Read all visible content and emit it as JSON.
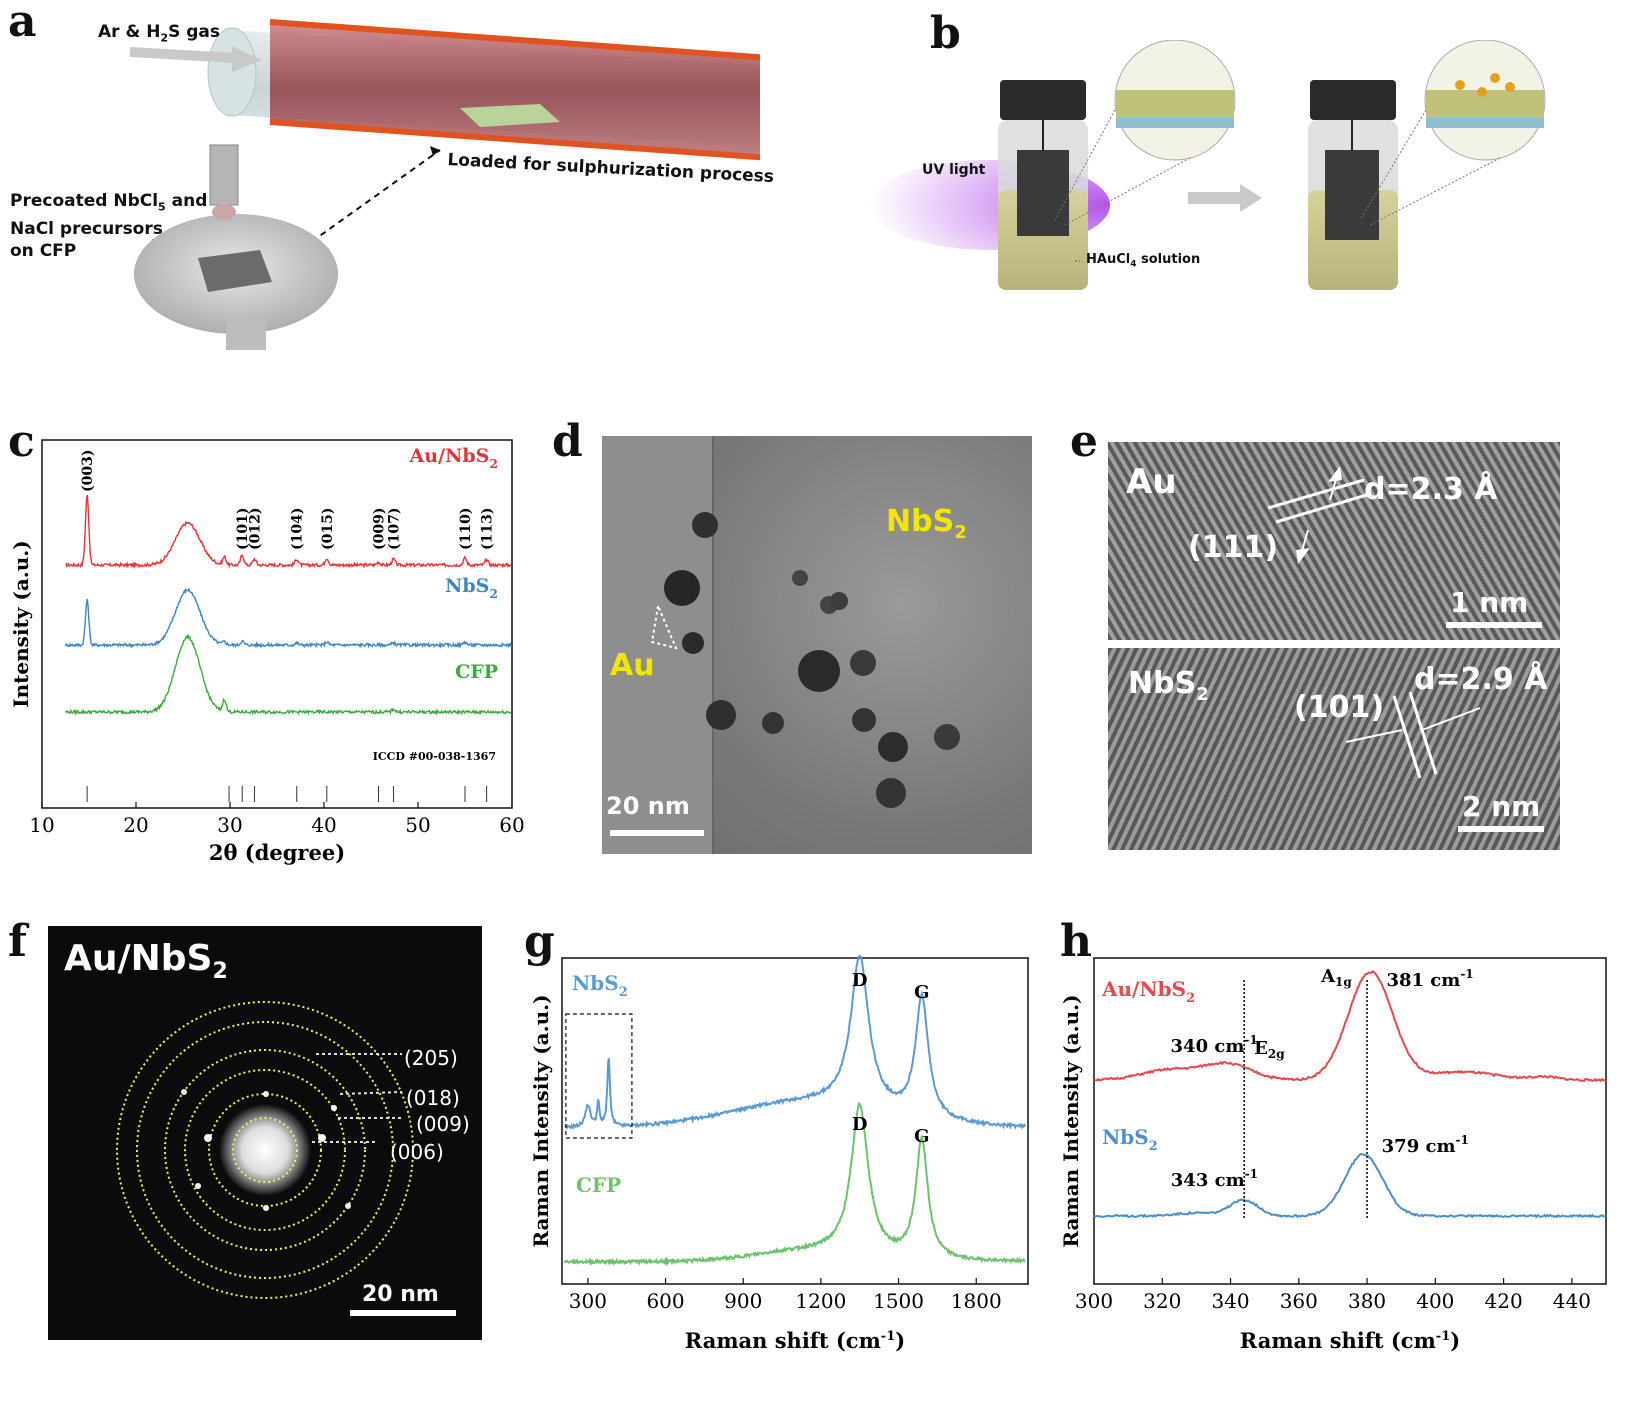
{
  "panels": {
    "a": {
      "letter": "a",
      "gas_label": "Ar & H",
      "gas_sub": "2",
      "gas_suffix": "S gas",
      "loaded_label": "Loaded for sulphurization process",
      "precoated_line1": "Precoated NbCl",
      "precoated_sub": "5",
      "precoated_line1_suffix": " and",
      "precoated_line2": "NaCl precursors",
      "precoated_line3": "on CFP",
      "colors": {
        "furnace_coil": "#e0531f",
        "tube": "#c9d6d9",
        "heater": "#a5484f"
      }
    },
    "b": {
      "letter": "b",
      "uv_label": "UV light",
      "solution_label": "HAuCl",
      "solution_sub": "4",
      "solution_suffix": " solution",
      "colors": {
        "uv": "#b04ae8",
        "cap": "#2a2a2a",
        "liquid": "#c9c48a"
      }
    },
    "c": {
      "letter": "c",
      "ref_label": "ICCD #00-038-1367"
    },
    "d": {
      "letter": "d",
      "material_label": "NbS",
      "material_sub": "2",
      "au_label": "Au",
      "scale_label": "20 nm"
    },
    "e": {
      "letter": "e",
      "top": {
        "material": "Au",
        "plane": "(111)",
        "spacing": "d=2.3 Å",
        "scale": "1 nm"
      },
      "bottom": {
        "material": "NbS",
        "material_sub": "2",
        "plane": "(101)",
        "spacing": "d=2.9 Å",
        "scale": "2 nm"
      }
    },
    "f": {
      "letter": "f",
      "title": "Au/NbS",
      "title_sub": "2",
      "rings": [
        "(205)",
        "(018)",
        "(009)",
        "(006)"
      ],
      "scale_label": "20 nm"
    },
    "g": {
      "letter": "g"
    },
    "h": {
      "letter": "h"
    }
  },
  "chart_data": [
    {
      "id": "c",
      "type": "line",
      "xlabel": "2θ (degree)",
      "ylabel": "Intensity (a.u.)",
      "xlim": [
        10,
        60
      ],
      "xticks": [
        10,
        20,
        30,
        40,
        50,
        60
      ],
      "series": [
        {
          "name": "Au/NbS2",
          "label": "Au/NbS",
          "label_sub": "2",
          "color": "#e8323a",
          "peaks": [
            [
              14.8,
              70
            ],
            [
              25.5,
              42
            ],
            [
              29.4,
              8
            ],
            [
              31.3,
              10
            ],
            [
              32.6,
              6
            ],
            [
              37.1,
              6
            ],
            [
              40.3,
              7
            ],
            [
              45.8,
              3
            ],
            [
              47.4,
              6
            ],
            [
              55.0,
              7
            ],
            [
              57.3,
              5
            ]
          ]
        },
        {
          "name": "NbS2",
          "label": "NbS",
          "label_sub": "2",
          "color": "#3b86c8",
          "peaks": [
            [
              14.8,
              45
            ],
            [
              25.5,
              55
            ],
            [
              29.4,
              3
            ],
            [
              31.3,
              4
            ],
            [
              37.1,
              2
            ],
            [
              40.3,
              3
            ],
            [
              47.4,
              2
            ],
            [
              55.0,
              3
            ]
          ]
        },
        {
          "name": "CFP",
          "label": "CFP",
          "color": "#3cab3c",
          "peaks": [
            [
              25.5,
              75
            ],
            [
              29.4,
              12
            ],
            [
              47.4,
              3
            ]
          ]
        }
      ],
      "reflections": [
        {
          "label": "(003)",
          "x": 14.8
        },
        {
          "label": "(101)",
          "x": 31.3
        },
        {
          "label": "(012)",
          "x": 32.6
        },
        {
          "label": "(104)",
          "x": 37.1
        },
        {
          "label": "(015)",
          "x": 40.3
        },
        {
          "label": "(009)",
          "x": 45.8
        },
        {
          "label": "(107)",
          "x": 47.4
        },
        {
          "label": "(110)",
          "x": 55.0
        },
        {
          "label": "(113)",
          "x": 57.3
        }
      ],
      "reference_lines": [
        14.8,
        29.9,
        31.3,
        32.6,
        37.1,
        40.3,
        45.8,
        47.4,
        55.0,
        57.3
      ]
    },
    {
      "id": "g",
      "type": "line",
      "xlabel": "Raman shift (cm",
      "xlabel_sup": "-1",
      "xlabel_end": ")",
      "ylabel": "Raman Intensity (a.u.)",
      "xlim": [
        200,
        2000
      ],
      "xticks": [
        300,
        600,
        900,
        1200,
        1500,
        1800
      ],
      "series": [
        {
          "name": "NbS2",
          "label": "NbS",
          "label_sub": "2",
          "color": "#5b9bd5"
        },
        {
          "name": "CFP",
          "label": "CFP",
          "color": "#6cc36c"
        }
      ],
      "peak_labels": [
        {
          "series": "NbS2",
          "label": "D",
          "x": 1350
        },
        {
          "series": "NbS2",
          "label": "G",
          "x": 1590
        },
        {
          "series": "CFP",
          "label": "D",
          "x": 1350
        },
        {
          "series": "CFP",
          "label": "G",
          "x": 1590
        }
      ]
    },
    {
      "id": "h",
      "type": "line",
      "xlabel": "Raman shift (cm",
      "xlabel_sup": "-1",
      "xlabel_end": ")",
      "ylabel": "Raman Intensity (a.u.)",
      "xlim": [
        300,
        450
      ],
      "xticks": [
        300,
        320,
        340,
        360,
        380,
        400,
        420,
        440
      ],
      "series": [
        {
          "name": "Au/NbS2",
          "label": "Au/NbS",
          "label_sub": "2",
          "color": "#e8474e"
        },
        {
          "name": "NbS2",
          "label": "NbS",
          "label_sub": "2",
          "color": "#4a8fd0"
        }
      ],
      "annotations": [
        {
          "text": "340 cm",
          "sup": "-1",
          "x": 340,
          "series": "Au/NbS2"
        },
        {
          "text": "381 cm",
          "sup": "-1",
          "x": 381,
          "series": "Au/NbS2"
        },
        {
          "text": "343 cm",
          "sup": "-1",
          "x": 343,
          "series": "NbS2"
        },
        {
          "text": "379 cm",
          "sup": "-1",
          "x": 379,
          "series": "NbS2"
        }
      ],
      "modes": [
        {
          "label": "E",
          "sub": "2g",
          "x": 344
        },
        {
          "label": "A",
          "sub": "1g",
          "x": 380
        }
      ]
    }
  ]
}
